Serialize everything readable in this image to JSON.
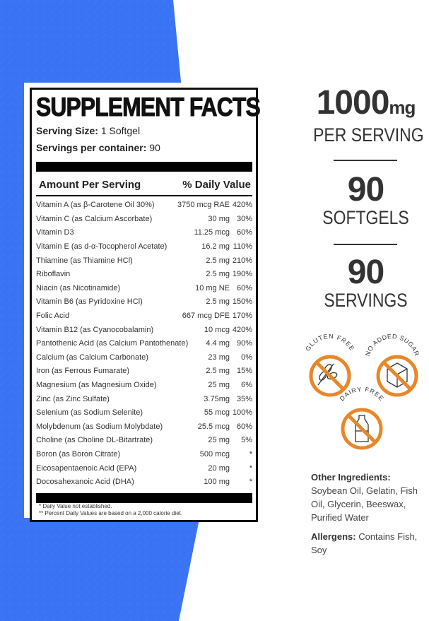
{
  "label": {
    "title": "SUPPLEMENT FACTS",
    "serving_size_label": "Serving Size:",
    "serving_size_value": "1 Softgel",
    "servings_label": "Servings per container:",
    "servings_value": "90",
    "col_amount": "Amount Per Serving",
    "col_dv": "% Daily Value",
    "rows": [
      {
        "name": "Vitamin A (as β-Carotene Oil 30%)",
        "amount": "3750 mcg RAE",
        "dv": "420%"
      },
      {
        "name": "Vitamin C (as Calcium Ascorbate)",
        "amount": "30 mg",
        "dv": "30%"
      },
      {
        "name": "Vitamin D3",
        "amount": "11.25 mcg",
        "dv": "60%"
      },
      {
        "name": "Vitamin E (as d-α-Tocopherol Acetate)",
        "amount": "16.2 mg",
        "dv": "110%"
      },
      {
        "name": "Thiamine (as Thiamine HCl)",
        "amount": "2.5 mg",
        "dv": "210%"
      },
      {
        "name": "Riboflavin",
        "amount": "2.5 mg",
        "dv": "190%"
      },
      {
        "name": "Niacin (as Nicotinamide)",
        "amount": "10 mg NE",
        "dv": "60%"
      },
      {
        "name": "Vitamin B6 (as Pyridoxine HCl)",
        "amount": "2.5 mg",
        "dv": "150%"
      },
      {
        "name": "Folic Acid",
        "amount": "667 mcg DFE",
        "dv": "170%"
      },
      {
        "name": "Vitamin B12 (as Cyanocobalamin)",
        "amount": "10 mcg",
        "dv": "420%"
      },
      {
        "name": "Pantothenic Acid (as Calcium Pantothenate)",
        "amount": "4.4 mg",
        "dv": "90%"
      },
      {
        "name": "Calcium (as Calcium Carbonate)",
        "amount": "23 mg",
        "dv": "0%"
      },
      {
        "name": "Iron (as Ferrous Fumarate)",
        "amount": "2.5 mg",
        "dv": "15%"
      },
      {
        "name": "Magnesium (as Magnesium Oxide)",
        "amount": "25 mg",
        "dv": "6%"
      },
      {
        "name": "Zinc (as Zinc Sulfate)",
        "amount": "3.75mg",
        "dv": "35%"
      },
      {
        "name": "Selenium (as Sodium Selenite)",
        "amount": "55 mcg",
        "dv": "100%"
      },
      {
        "name": "Molybdenum (as Sodium Molybdate)",
        "amount": "25.5 mcg",
        "dv": "60%"
      },
      {
        "name": "Choline (as Choline DL-Bitartrate)",
        "amount": "25 mg",
        "dv": "5%"
      },
      {
        "name": "Boron (as Boron Citrate)",
        "amount": "500 mcg",
        "dv": "*"
      },
      {
        "name": "Eicosapentaenoic Acid (EPA)",
        "amount": "20 mg",
        "dv": "*"
      },
      {
        "name": "Docosahexanoic Acid (DHA)",
        "amount": "100 mg",
        "dv": "*"
      }
    ],
    "footnote1": "* Daily Value not established.",
    "footnote2": "** Percent Daily Values are based on a 2,000 calorie diet."
  },
  "stats": [
    {
      "value": "1000",
      "unit": "mg",
      "label": "PER SERVING"
    },
    {
      "value": "90",
      "unit": "",
      "label": "SOFTGELS"
    },
    {
      "value": "90",
      "unit": "",
      "label": "SERVINGS"
    }
  ],
  "badges": [
    {
      "text": "GLUTEN FREE",
      "icon": "wheat-icon"
    },
    {
      "text": "NO ADDED SUGAR",
      "icon": "sugar-cube-icon"
    },
    {
      "text": "DAIRY FREE",
      "icon": "milk-bottle-icon"
    }
  ],
  "info": {
    "ingredients_label": "Other Ingredients:",
    "ingredients": "Soybean Oil, Gelatin, Fish Oil, Glycerin, Beeswax, Purified Water",
    "allergens_label": "Allergens:",
    "allergens": "Contains Fish, Soy"
  },
  "colors": {
    "blue": "#3a74f5",
    "orange": "#e8872a",
    "text": "#333333"
  }
}
